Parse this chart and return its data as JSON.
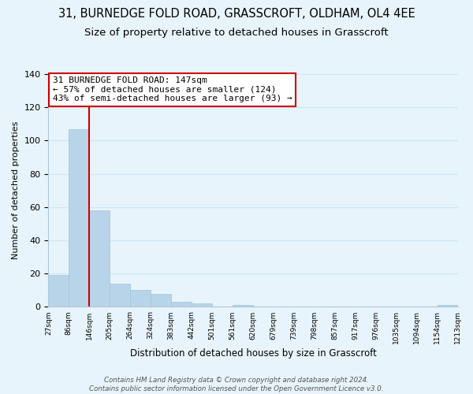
{
  "title": "31, BURNEDGE FOLD ROAD, GRASSCROFT, OLDHAM, OL4 4EE",
  "subtitle": "Size of property relative to detached houses in Grasscroft",
  "xlabel": "Distribution of detached houses by size in Grasscroft",
  "ylabel": "Number of detached properties",
  "bar_values": [
    19,
    107,
    58,
    14,
    10,
    8,
    3,
    2,
    0,
    1,
    0,
    0,
    0,
    0,
    0,
    0,
    0,
    0,
    0,
    1
  ],
  "bar_labels": [
    "27sqm",
    "86sqm",
    "146sqm",
    "205sqm",
    "264sqm",
    "324sqm",
    "383sqm",
    "442sqm",
    "501sqm",
    "561sqm",
    "620sqm",
    "679sqm",
    "739sqm",
    "798sqm",
    "857sqm",
    "917sqm",
    "976sqm",
    "1035sqm",
    "1094sqm",
    "1154sqm",
    "1213sqm"
  ],
  "bar_color": "#b8d4e8",
  "marker_line_color": "#cc0000",
  "ylim": [
    0,
    140
  ],
  "yticks": [
    0,
    20,
    40,
    60,
    80,
    100,
    120,
    140
  ],
  "annotation_title": "31 BURNEDGE FOLD ROAD: 147sqm",
  "annotation_line1": "← 57% of detached houses are smaller (124)",
  "annotation_line2": "43% of semi-detached houses are larger (93) →",
  "annotation_box_color": "#ffffff",
  "annotation_box_edge_color": "#cc0000",
  "footer_line1": "Contains HM Land Registry data © Crown copyright and database right 2024.",
  "footer_line2": "Contains public sector information licensed under the Open Government Licence v3.0.",
  "background_color": "#e8f4fb",
  "grid_color": "#d0e8f5",
  "title_fontsize": 10.5,
  "subtitle_fontsize": 9.5
}
